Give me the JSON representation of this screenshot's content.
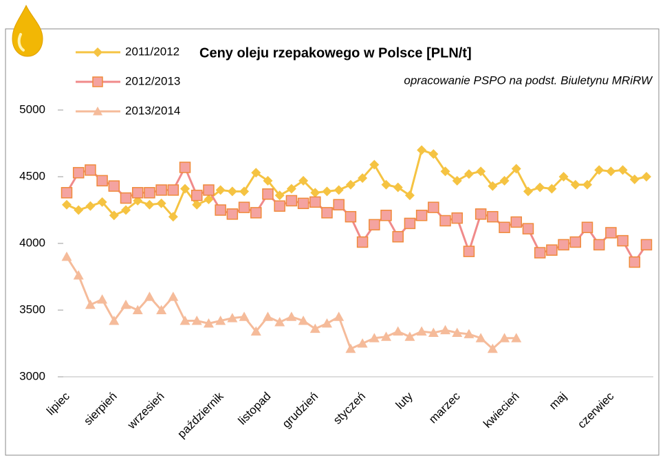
{
  "chart_data": {
    "type": "line",
    "title": "Ceny oleju rzepakowego w Polsce [PLN/t]",
    "subtitle": "opracowanie PSPO na podst. Biuletynu MRiRW",
    "categories": [
      "lipiec",
      null,
      null,
      null,
      "sierpień",
      null,
      null,
      null,
      "wrzesień",
      null,
      null,
      null,
      null,
      "październik",
      null,
      null,
      null,
      "listopad",
      null,
      null,
      null,
      "grudzień",
      null,
      null,
      null,
      "styczeń",
      null,
      null,
      null,
      "luty",
      null,
      null,
      null,
      "marzec",
      null,
      null,
      null,
      null,
      "kwiecień",
      null,
      null,
      null,
      "maj",
      null,
      null,
      null,
      "czerwiec",
      null,
      null,
      null
    ],
    "series": [
      {
        "name": "2011/2012",
        "color": "#f5c342",
        "marker": "diamond",
        "values": [
          4290,
          4250,
          4280,
          4310,
          4210,
          4250,
          4320,
          4290,
          4300,
          4200,
          4410,
          4290,
          4330,
          4400,
          4390,
          4390,
          4530,
          4470,
          4360,
          4410,
          4470,
          4380,
          4390,
          4400,
          4440,
          4490,
          4590,
          4440,
          4420,
          4360,
          4700,
          4670,
          4540,
          4470,
          4520,
          4540,
          4430,
          4470,
          4560,
          4390,
          4420,
          4410,
          4500,
          4440,
          4440,
          4550,
          4540,
          4550,
          4480,
          4500
        ]
      },
      {
        "name": "2012/2013",
        "color": "#f08a8a",
        "marker": "square",
        "values": [
          4380,
          4530,
          4550,
          4470,
          4430,
          4340,
          4380,
          4380,
          4400,
          4400,
          4570,
          4360,
          4400,
          4250,
          4220,
          4270,
          4230,
          4370,
          4280,
          4320,
          4300,
          4310,
          4230,
          4290,
          4200,
          4010,
          4140,
          4210,
          4050,
          4150,
          4210,
          4270,
          4170,
          4190,
          3940,
          4220,
          4200,
          4120,
          4160,
          4110,
          3930,
          3950,
          3990,
          4010,
          4120,
          3990,
          4080,
          4020,
          3860,
          3990
        ]
      },
      {
        "name": "2013/2014",
        "color": "#f5bb9a",
        "marker": "triangle",
        "values": [
          3900,
          3760,
          3540,
          3580,
          3420,
          3540,
          3500,
          3600,
          3500,
          3600,
          3420,
          3420,
          3400,
          3420,
          3440,
          3450,
          3340,
          3450,
          3410,
          3450,
          3420,
          3360,
          3400,
          3450,
          3210,
          3250,
          3290,
          3300,
          3340,
          3300,
          3340,
          3330,
          3350,
          3330,
          3320,
          3290,
          3210,
          3290,
          3290,
          null,
          null,
          null,
          null,
          null,
          null,
          null,
          null,
          null,
          null,
          null
        ]
      }
    ],
    "ylim": [
      3000,
      5000
    ],
    "yticks": [
      3000,
      3500,
      4000,
      4500,
      5000
    ],
    "grid": false,
    "legend": "top-left"
  }
}
